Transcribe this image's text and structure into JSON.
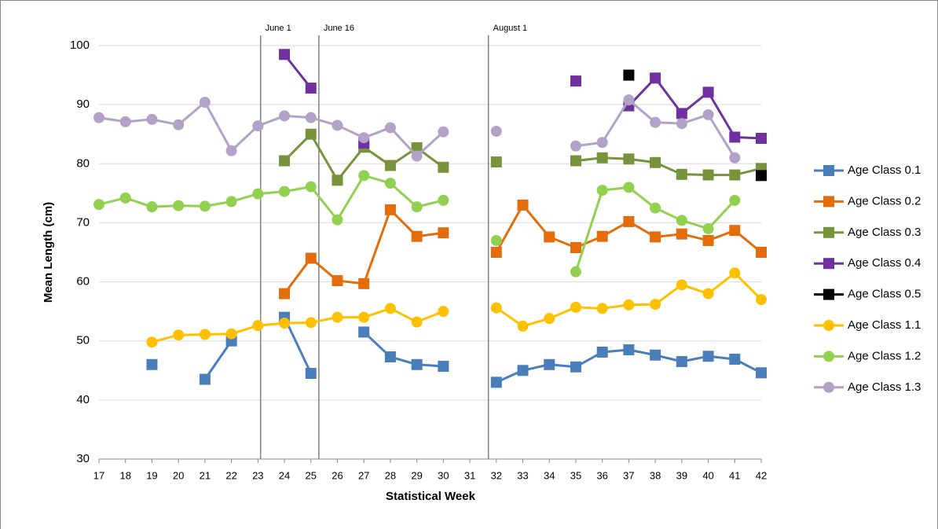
{
  "chart_data": {
    "type": "line",
    "xlabel": "Statistical Week",
    "ylabel": "Mean Length (cm)",
    "categories": [
      17,
      18,
      19,
      20,
      21,
      22,
      23,
      24,
      25,
      26,
      27,
      28,
      29,
      30,
      31,
      32,
      33,
      34,
      35,
      36,
      37,
      38,
      39,
      40,
      41,
      42
    ],
    "ylim": [
      30,
      100
    ],
    "yticks": [
      30,
      40,
      50,
      60,
      70,
      80,
      90,
      100
    ],
    "grid": true,
    "legend": "right",
    "annotations": [
      {
        "text": "June 1",
        "x": 23.1
      },
      {
        "text": "June 16",
        "x": 25.3
      },
      {
        "text": "August 1",
        "x": 31.7
      }
    ],
    "series": [
      {
        "name": "Age Class 0.1",
        "color": "#4a7ebb",
        "marker": "square",
        "values": [
          null,
          null,
          46,
          null,
          43.5,
          50,
          null,
          54,
          44.5,
          null,
          51.5,
          47.3,
          46,
          45.7,
          null,
          43,
          45,
          46,
          45.6,
          48.1,
          48.5,
          47.6,
          46.5,
          47.4,
          46.9,
          44.6
        ]
      },
      {
        "name": "Age Class 0.2",
        "color": "#e46c0a",
        "marker": "square",
        "values": [
          null,
          null,
          null,
          null,
          null,
          null,
          null,
          58,
          64,
          60.2,
          59.7,
          72.2,
          67.7,
          68.3,
          null,
          65,
          73,
          67.6,
          65.8,
          67.7,
          70.2,
          67.6,
          68.1,
          67,
          68.7,
          65
        ]
      },
      {
        "name": "Age Class 0.3",
        "color": "#77933c",
        "marker": "square",
        "values": [
          null,
          null,
          null,
          null,
          null,
          null,
          null,
          80.5,
          85,
          77.2,
          82.8,
          79.7,
          82.7,
          79.4,
          null,
          80.3,
          null,
          null,
          80.5,
          81,
          80.8,
          80.2,
          78.2,
          78.1,
          78.1,
          79.2
        ]
      },
      {
        "name": "Age Class 0.4",
        "color": "#7030a0",
        "marker": "square",
        "values": [
          null,
          null,
          null,
          null,
          null,
          null,
          null,
          98.5,
          92.8,
          null,
          83.5,
          null,
          null,
          null,
          null,
          null,
          null,
          null,
          94,
          null,
          89.8,
          94.5,
          88.5,
          92.1,
          84.5,
          84.3
        ]
      },
      {
        "name": "Age Class 0.5",
        "color": "#000000",
        "marker": "square",
        "values": [
          null,
          null,
          null,
          null,
          null,
          null,
          null,
          null,
          null,
          null,
          null,
          null,
          null,
          null,
          null,
          null,
          null,
          null,
          null,
          null,
          95,
          null,
          null,
          null,
          null,
          78
        ]
      },
      {
        "name": "Age Class 1.1",
        "color": "#ffc000",
        "marker": "circle",
        "values": [
          null,
          null,
          49.8,
          51,
          51.1,
          51.2,
          52.6,
          53,
          53.1,
          54,
          54,
          55.5,
          53.2,
          55,
          null,
          55.6,
          52.5,
          53.8,
          55.7,
          55.5,
          56.1,
          56.2,
          59.5,
          58,
          61.5,
          57
        ]
      },
      {
        "name": "Age Class 1.2",
        "color": "#92d050",
        "marker": "circle",
        "values": [
          73.1,
          74.2,
          72.7,
          72.9,
          72.8,
          73.6,
          74.9,
          75.3,
          76.1,
          70.5,
          78,
          76.7,
          72.7,
          73.8,
          null,
          67,
          null,
          null,
          61.7,
          75.5,
          76,
          72.5,
          70.4,
          69,
          73.8,
          null
        ]
      },
      {
        "name": "Age Class 1.3",
        "color": "#b3a2c7",
        "marker": "circle",
        "values": [
          87.8,
          87.1,
          87.5,
          86.6,
          90.4,
          82.2,
          86.4,
          88.1,
          87.8,
          86.5,
          84.4,
          86.1,
          81.3,
          85.4,
          null,
          85.5,
          null,
          null,
          83,
          83.6,
          90.8,
          87,
          86.8,
          88.3,
          81,
          null
        ]
      }
    ]
  }
}
